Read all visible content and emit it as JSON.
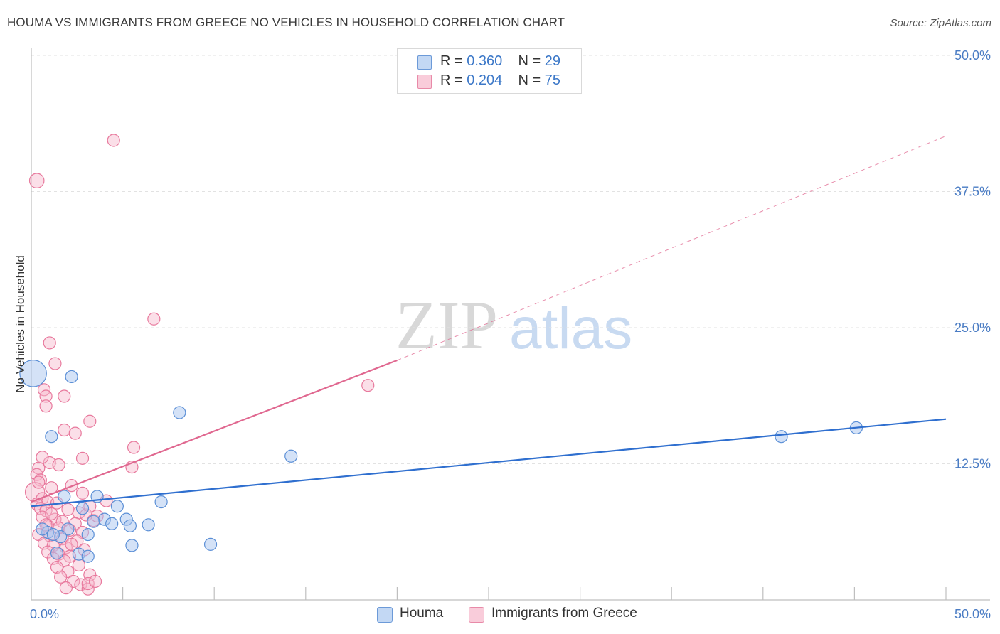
{
  "title": "HOUMA VS IMMIGRANTS FROM GREECE NO VEHICLES IN HOUSEHOLD CORRELATION CHART",
  "source": "Source: ZipAtlas.com",
  "watermark": {
    "zip": "ZIP",
    "atlas": "atlas"
  },
  "legend": {
    "r_label": "R =",
    "n_label": "N =",
    "houma": {
      "r": "0.360",
      "n": "29"
    },
    "greece": {
      "r": "0.204",
      "n": "75"
    }
  },
  "colors": {
    "houma_fill": "#a9c6ef",
    "houma_stroke": "#5b8fd6",
    "houma_line": "#2f6fcf",
    "greece_fill": "#f6b8cb",
    "greece_stroke": "#e8799d",
    "greece_line": "#e06890",
    "tick_text": "#4a7cc4",
    "grid": "#e2e2e2"
  },
  "chart_data": {
    "type": "scatter",
    "title": "HOUMA VS IMMIGRANTS FROM GREECE NO VEHICLES IN HOUSEHOLD CORRELATION CHART",
    "xlabel": "",
    "ylabel": "No Vehicles in Household",
    "xlim": [
      0,
      50
    ],
    "ylim": [
      0,
      50
    ],
    "x_tick_labels": {
      "min": "0.0%",
      "max": "50.0%"
    },
    "y_ticks": [
      {
        "value": 12.5,
        "label": "12.5%"
      },
      {
        "value": 25.0,
        "label": "25.0%"
      },
      {
        "value": 37.5,
        "label": "37.5%"
      },
      {
        "value": 50.0,
        "label": "50.0%"
      }
    ],
    "series": [
      {
        "name": "Houma",
        "r": 0.36,
        "n": 29,
        "trend": {
          "x0": 0,
          "y0": 8.6,
          "x1": 50,
          "y1": 16.6
        },
        "points": [
          [
            0.1,
            20.8,
            2.2
          ],
          [
            2.2,
            20.5,
            1
          ],
          [
            1.1,
            15.0,
            1
          ],
          [
            8.1,
            17.2,
            1
          ],
          [
            14.2,
            13.2,
            1
          ],
          [
            1.8,
            9.5,
            1
          ],
          [
            3.6,
            9.5,
            1
          ],
          [
            4.7,
            8.6,
            1
          ],
          [
            7.1,
            9.0,
            1
          ],
          [
            2.8,
            8.4,
            1
          ],
          [
            4.0,
            7.4,
            1
          ],
          [
            4.4,
            7.0,
            1
          ],
          [
            3.4,
            7.2,
            1
          ],
          [
            5.2,
            7.4,
            1
          ],
          [
            5.4,
            6.8,
            1
          ],
          [
            6.4,
            6.9,
            1
          ],
          [
            2.0,
            6.5,
            1
          ],
          [
            3.1,
            6.0,
            1
          ],
          [
            0.9,
            6.2,
            1
          ],
          [
            1.6,
            5.8,
            1
          ],
          [
            1.2,
            6.0,
            1
          ],
          [
            5.5,
            5.0,
            1
          ],
          [
            9.8,
            5.1,
            1
          ],
          [
            2.6,
            4.2,
            1
          ],
          [
            3.1,
            4.0,
            1
          ],
          [
            1.4,
            4.3,
            1
          ],
          [
            41.0,
            15.0,
            1
          ],
          [
            45.1,
            15.8,
            1
          ],
          [
            0.6,
            6.5,
            1
          ]
        ]
      },
      {
        "name": "Immigrants from Greece",
        "r": 0.204,
        "n": 75,
        "trend": {
          "x0": 0,
          "y0": 9.0,
          "x1": 20,
          "y1": 22.0
        },
        "trend_dashed": {
          "x0": 20,
          "y0": 22.0,
          "x1": 50,
          "y1": 42.6
        },
        "points": [
          [
            0.3,
            38.5,
            1.2
          ],
          [
            4.5,
            42.2,
            1
          ],
          [
            6.7,
            25.8,
            1
          ],
          [
            1.0,
            23.6,
            1
          ],
          [
            1.3,
            21.7,
            1
          ],
          [
            0.7,
            19.3,
            1
          ],
          [
            0.8,
            18.7,
            1
          ],
          [
            1.8,
            18.7,
            1
          ],
          [
            0.8,
            17.8,
            1
          ],
          [
            3.2,
            16.4,
            1
          ],
          [
            1.8,
            15.6,
            1
          ],
          [
            2.4,
            15.3,
            1
          ],
          [
            5.6,
            14.0,
            1
          ],
          [
            2.8,
            13.0,
            1
          ],
          [
            1.0,
            12.6,
            1
          ],
          [
            5.5,
            12.2,
            1
          ],
          [
            0.4,
            12.1,
            1
          ],
          [
            0.3,
            11.5,
            1
          ],
          [
            0.5,
            11.0,
            1
          ],
          [
            2.2,
            10.5,
            1
          ],
          [
            1.1,
            10.3,
            1
          ],
          [
            0.2,
            9.9,
            1.6
          ],
          [
            0.6,
            9.3,
            1
          ],
          [
            0.9,
            9.0,
            1
          ],
          [
            1.4,
            8.9,
            1
          ],
          [
            0.3,
            8.8,
            1
          ],
          [
            0.5,
            8.4,
            1
          ],
          [
            0.8,
            8.2,
            1
          ],
          [
            2.0,
            8.3,
            1
          ],
          [
            2.6,
            8.0,
            1
          ],
          [
            3.0,
            7.8,
            1
          ],
          [
            0.6,
            7.6,
            1
          ],
          [
            1.3,
            7.4,
            1
          ],
          [
            1.7,
            7.2,
            1
          ],
          [
            2.4,
            7.0,
            1
          ],
          [
            3.4,
            7.3,
            1
          ],
          [
            0.9,
            6.8,
            1
          ],
          [
            1.5,
            6.6,
            1
          ],
          [
            2.1,
            6.4,
            1
          ],
          [
            2.8,
            6.2,
            1
          ],
          [
            0.4,
            6.0,
            1
          ],
          [
            1.0,
            5.9,
            1
          ],
          [
            1.7,
            5.6,
            1
          ],
          [
            2.5,
            5.4,
            1
          ],
          [
            0.7,
            5.2,
            1
          ],
          [
            1.2,
            5.0,
            1
          ],
          [
            1.9,
            4.8,
            1
          ],
          [
            2.9,
            4.6,
            1
          ],
          [
            0.9,
            4.4,
            1
          ],
          [
            1.5,
            4.2,
            1
          ],
          [
            2.1,
            4.0,
            1
          ],
          [
            1.2,
            3.8,
            1
          ],
          [
            1.8,
            3.6,
            1
          ],
          [
            2.6,
            3.2,
            1
          ],
          [
            1.4,
            3.0,
            1
          ],
          [
            2.0,
            2.6,
            1
          ],
          [
            3.2,
            2.3,
            1
          ],
          [
            1.6,
            2.1,
            1
          ],
          [
            2.3,
            1.7,
            1
          ],
          [
            2.7,
            1.4,
            1
          ],
          [
            1.9,
            1.1,
            1
          ],
          [
            3.1,
            1.0,
            1
          ],
          [
            0.8,
            6.9,
            1
          ],
          [
            1.1,
            7.9,
            1
          ],
          [
            0.4,
            10.8,
            1
          ],
          [
            0.6,
            13.1,
            1
          ],
          [
            1.5,
            12.4,
            1
          ],
          [
            2.8,
            9.8,
            1
          ],
          [
            3.2,
            8.6,
            1
          ],
          [
            4.1,
            9.1,
            1
          ],
          [
            2.2,
            5.1,
            1
          ],
          [
            3.6,
            7.7,
            1
          ],
          [
            18.4,
            19.7,
            1
          ],
          [
            3.1,
            1.5,
            1
          ],
          [
            3.5,
            1.7,
            1
          ]
        ]
      }
    ]
  },
  "bottom_legend": {
    "houma": "Houma",
    "greece": "Immigrants from Greece"
  }
}
